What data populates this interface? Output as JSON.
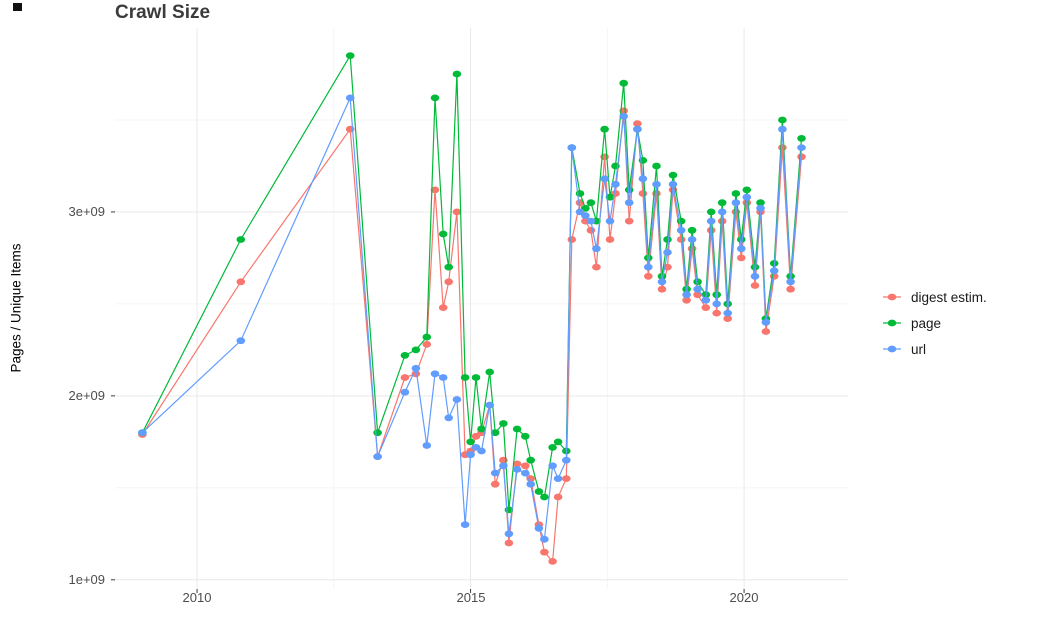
{
  "chart_data": {
    "type": "line",
    "title": "Crawl Size",
    "xlabel": "",
    "ylabel": "Pages / Unique Items",
    "xlim": [
      2008.5,
      2021.9
    ],
    "ylim": [
      950000000.0,
      4000000000.0
    ],
    "grid": true,
    "legend_position": "right",
    "xticks": [
      {
        "value": 2010,
        "label": "2010"
      },
      {
        "value": 2015,
        "label": "2015"
      },
      {
        "value": 2020,
        "label": "2020"
      }
    ],
    "yticks": [
      {
        "value": 1000000000.0,
        "label": "1e+09"
      },
      {
        "value": 2000000000.0,
        "label": "2e+09"
      },
      {
        "value": 3000000000.0,
        "label": "3e+09"
      }
    ],
    "minor_xticks": [
      2012.5,
      2017.5
    ],
    "minor_yticks": [
      1500000000.0,
      2500000000.0,
      3500000000.0
    ],
    "x": [
      2009.0,
      2010.8,
      2012.8,
      2013.3,
      2013.8,
      2014.0,
      2014.2,
      2014.35,
      2014.5,
      2014.6,
      2014.75,
      2014.9,
      2015.0,
      2015.1,
      2015.2,
      2015.35,
      2015.45,
      2015.6,
      2015.7,
      2015.85,
      2016.0,
      2016.1,
      2016.25,
      2016.35,
      2016.5,
      2016.6,
      2016.75,
      2016.85,
      2017.0,
      2017.1,
      2017.2,
      2017.3,
      2017.45,
      2017.55,
      2017.65,
      2017.8,
      2017.9,
      2018.05,
      2018.15,
      2018.25,
      2018.4,
      2018.5,
      2018.6,
      2018.7,
      2018.85,
      2018.95,
      2019.05,
      2019.15,
      2019.3,
      2019.4,
      2019.5,
      2019.6,
      2019.7,
      2019.85,
      2019.95,
      2020.05,
      2020.2,
      2020.3,
      2020.4,
      2020.55,
      2020.7,
      2020.85,
      2021.05
    ],
    "series": [
      {
        "id": "digest",
        "name": "digest estim.",
        "color": "#F8766D",
        "values": [
          1790000000.0,
          2620000000.0,
          3450000000.0,
          1670000000.0,
          2100000000.0,
          2120000000.0,
          2280000000.0,
          3120000000.0,
          2480000000.0,
          2620000000.0,
          3000000000.0,
          1680000000.0,
          1700000000.0,
          1780000000.0,
          1800000000.0,
          1950000000.0,
          1520000000.0,
          1650000000.0,
          1200000000.0,
          1630000000.0,
          1620000000.0,
          1550000000.0,
          1300000000.0,
          1150000000.0,
          1100000000.0,
          1450000000.0,
          1550000000.0,
          2850000000.0,
          3050000000.0,
          2950000000.0,
          2900000000.0,
          2700000000.0,
          3300000000.0,
          2850000000.0,
          3100000000.0,
          3550000000.0,
          2950000000.0,
          3480000000.0,
          3100000000.0,
          2650000000.0,
          3100000000.0,
          2580000000.0,
          2700000000.0,
          3120000000.0,
          2850000000.0,
          2520000000.0,
          2800000000.0,
          2550000000.0,
          2480000000.0,
          2900000000.0,
          2450000000.0,
          2950000000.0,
          2420000000.0,
          3000000000.0,
          2750000000.0,
          3050000000.0,
          2600000000.0,
          3000000000.0,
          2350000000.0,
          2650000000.0,
          3350000000.0,
          2580000000.0,
          3300000000.0
        ]
      },
      {
        "id": "page",
        "name": "page",
        "color": "#00BA38",
        "values": [
          1800000000.0,
          2850000000.0,
          3850000000.0,
          1800000000.0,
          2220000000.0,
          2250000000.0,
          2320000000.0,
          3620000000.0,
          2880000000.0,
          2700000000.0,
          3750000000.0,
          2100000000.0,
          1750000000.0,
          2100000000.0,
          1820000000.0,
          2130000000.0,
          1800000000.0,
          1850000000.0,
          1380000000.0,
          1820000000.0,
          1780000000.0,
          1650000000.0,
          1480000000.0,
          1450000000.0,
          1720000000.0,
          1750000000.0,
          1700000000.0,
          3350000000.0,
          3100000000.0,
          3020000000.0,
          3050000000.0,
          2950000000.0,
          3450000000.0,
          3080000000.0,
          3250000000.0,
          3700000000.0,
          3120000000.0,
          3450000000.0,
          3280000000.0,
          2750000000.0,
          3250000000.0,
          2650000000.0,
          2850000000.0,
          3200000000.0,
          2950000000.0,
          2580000000.0,
          2900000000.0,
          2620000000.0,
          2550000000.0,
          3000000000.0,
          2550000000.0,
          3050000000.0,
          2500000000.0,
          3100000000.0,
          2850000000.0,
          3120000000.0,
          2700000000.0,
          3050000000.0,
          2420000000.0,
          2720000000.0,
          3500000000.0,
          2650000000.0,
          3400000000.0
        ]
      },
      {
        "id": "url",
        "name": "url",
        "color": "#619CFF",
        "values": [
          1800000000.0,
          2300000000.0,
          3620000000.0,
          1670000000.0,
          2020000000.0,
          2150000000.0,
          1730000000.0,
          2120000000.0,
          2100000000.0,
          1880000000.0,
          1980000000.0,
          1300000000.0,
          1680000000.0,
          1720000000.0,
          1700000000.0,
          1950000000.0,
          1580000000.0,
          1620000000.0,
          1250000000.0,
          1600000000.0,
          1580000000.0,
          1520000000.0,
          1280000000.0,
          1220000000.0,
          1620000000.0,
          1550000000.0,
          1650000000.0,
          3350000000.0,
          3000000000.0,
          2980000000.0,
          2950000000.0,
          2800000000.0,
          3180000000.0,
          2950000000.0,
          3150000000.0,
          3520000000.0,
          3050000000.0,
          3450000000.0,
          3180000000.0,
          2700000000.0,
          3150000000.0,
          2620000000.0,
          2780000000.0,
          3150000000.0,
          2900000000.0,
          2550000000.0,
          2850000000.0,
          2580000000.0,
          2520000000.0,
          2950000000.0,
          2500000000.0,
          3000000000.0,
          2450000000.0,
          3050000000.0,
          2800000000.0,
          3080000000.0,
          2650000000.0,
          3020000000.0,
          2400000000.0,
          2680000000.0,
          3450000000.0,
          2620000000.0,
          3350000000.0
        ]
      }
    ]
  }
}
